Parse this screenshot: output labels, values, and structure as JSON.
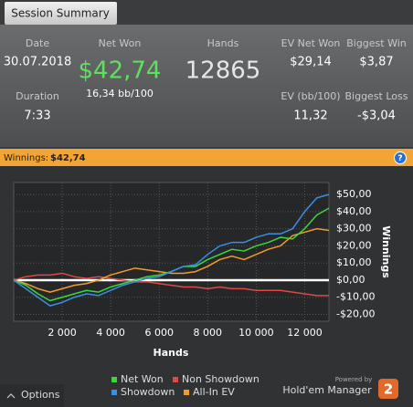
{
  "tab": "Session Summary",
  "stats": {
    "date_label": "Date",
    "date": "30.07.2018",
    "net_won_label": "Net Won",
    "net_won": "$42,74",
    "bb100": "16,34 bb/100",
    "hands_label": "Hands",
    "hands": "12865",
    "ev_net_won_label": "EV Net Won",
    "ev_net_won": "$29,14",
    "biggest_win_label": "Biggest Win",
    "biggest_win": "$3,87",
    "duration_label": "Duration",
    "duration": "7:33",
    "ev_bb100_label": "EV (bb/100)",
    "ev_bb100": "11,32",
    "biggest_loss_label": "Biggest Loss",
    "biggest_loss": "-$3,04"
  },
  "winnings_bar": {
    "label": "Winnings:",
    "value": "$42,74",
    "help": "?"
  },
  "chart_data": {
    "type": "line",
    "x_label": "Hands",
    "y_label": "Winnings",
    "x": [
      0,
      500,
      1000,
      1500,
      2000,
      2500,
      3000,
      3500,
      4000,
      4500,
      5000,
      5500,
      6000,
      6500,
      7000,
      7500,
      8000,
      8500,
      9000,
      9500,
      10000,
      10500,
      11000,
      11500,
      12000,
      12500,
      13000
    ],
    "series": [
      {
        "name": "Net Won",
        "color": "#3ad83a",
        "values": [
          0,
          -3,
          -8,
          -12,
          -10,
          -8,
          -6,
          -7,
          -4,
          -2,
          0,
          2,
          3,
          5,
          8,
          8,
          12,
          15,
          18,
          17,
          20,
          22,
          25,
          24,
          30,
          38,
          42
        ]
      },
      {
        "name": "Non Showdown",
        "color": "#e04848",
        "values": [
          0,
          2,
          3,
          3,
          4,
          2,
          1,
          2,
          1,
          0,
          -1,
          -1,
          -2,
          -3,
          -4,
          -4,
          -5,
          -4,
          -5,
          -5,
          -6,
          -6,
          -6,
          -7,
          -8,
          -9,
          -9
        ]
      },
      {
        "name": "Showdown",
        "color": "#3a8ee6",
        "values": [
          0,
          -5,
          -10,
          -15,
          -13,
          -10,
          -8,
          -9,
          -6,
          -3,
          -1,
          1,
          2,
          5,
          8,
          9,
          15,
          20,
          22,
          22,
          25,
          27,
          27,
          30,
          40,
          48,
          50
        ]
      },
      {
        "name": "All-In EV",
        "color": "#f39a2c",
        "values": [
          0,
          -2,
          -5,
          -7,
          -5,
          -3,
          -2,
          0,
          3,
          5,
          7,
          6,
          5,
          4,
          4,
          5,
          8,
          12,
          14,
          12,
          15,
          18,
          20,
          26,
          28,
          30,
          29
        ]
      }
    ],
    "xlim": [
      0,
      13000
    ],
    "ylim": [
      -24,
      57
    ],
    "xticks": [
      {
        "value": 2000,
        "label": "2 000"
      },
      {
        "value": 4000,
        "label": "4 000"
      },
      {
        "value": 6000,
        "label": "6 000"
      },
      {
        "value": 8000,
        "label": "8 000"
      },
      {
        "value": 10000,
        "label": "10 000"
      },
      {
        "value": 12000,
        "label": "12 000"
      }
    ],
    "yticks": [
      {
        "value": -20,
        "label": "-$20,00"
      },
      {
        "value": -10,
        "label": "-$10,00"
      },
      {
        "value": 0,
        "label": "$0,00"
      },
      {
        "value": 10,
        "label": "$10,00"
      },
      {
        "value": 20,
        "label": "$20,00"
      },
      {
        "value": 30,
        "label": "$30,00"
      },
      {
        "value": 40,
        "label": "$40,00"
      },
      {
        "value": 50,
        "label": "$50,00"
      }
    ],
    "grid": true
  },
  "footer": {
    "options": "Options",
    "powered_by": "Powered by",
    "brand": "Hold'em Manager",
    "version": "2"
  }
}
